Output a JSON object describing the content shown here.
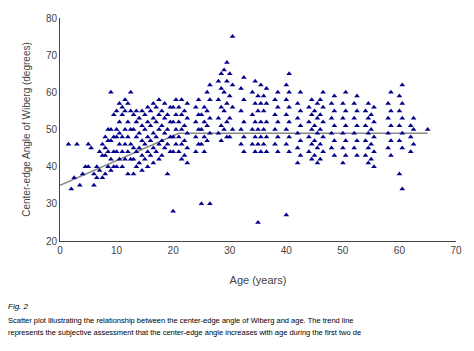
{
  "chart_data": {
    "type": "scatter",
    "xlabel": "Age (years)",
    "ylabel": "Center-edge Angle of Wiberg (degrees)",
    "xlim": [
      0,
      70
    ],
    "ylim": [
      20,
      80
    ],
    "xticks": [
      0,
      10,
      20,
      30,
      40,
      50,
      60,
      70
    ],
    "yticks": [
      20,
      30,
      40,
      50,
      60,
      70,
      80
    ],
    "grid": false,
    "annotations": [
      "Fig. 2",
      "Scatter plot illustrating the relationship between the center-edge angle of Wiberg and age. The trend line",
      "represents the subjective assessment that the center-edge angle increases with age during the first two de"
    ],
    "series": [
      {
        "type": "scatter",
        "marker": "triangle",
        "color": "#00008B",
        "x": [
          1.5,
          2.5,
          2.0,
          3.5,
          3.0,
          4.5,
          4.0,
          5.5,
          5.0,
          5.0,
          6.5,
          6.0,
          6.5,
          6.0,
          7.5,
          7.0,
          7.5,
          7.0,
          7.5,
          8.5,
          8.0,
          8.5,
          8.0,
          8.5,
          8.0,
          8.5,
          8.0,
          9.5,
          9.0,
          9.5,
          9.0,
          9.5,
          9.0,
          9.5,
          9.0,
          9.0,
          10.5,
          10.0,
          10.5,
          10.0,
          10.5,
          10.0,
          10.5,
          10.0,
          10.5,
          10.0,
          11.5,
          11.0,
          11.5,
          11.0,
          11.5,
          11.0,
          11.5,
          11.0,
          11.5,
          11.0,
          12.5,
          12.0,
          12.5,
          12.0,
          12.5,
          12.0,
          12.5,
          12.0,
          12.5,
          12.0,
          13.5,
          13.0,
          13.5,
          13.0,
          13.5,
          13.0,
          13.5,
          13.0,
          13.5,
          13.0,
          14.5,
          14.0,
          14.5,
          14.0,
          14.5,
          14.0,
          14.5,
          14.0,
          14.5,
          15.5,
          15.0,
          15.5,
          15.0,
          15.5,
          15.0,
          15.5,
          15.0,
          15.5,
          16.5,
          16.0,
          16.5,
          16.0,
          16.5,
          16.0,
          16.5,
          16.0,
          16.5,
          17.5,
          17.0,
          17.5,
          17.0,
          17.5,
          17.0,
          17.5,
          17.0,
          17.5,
          18.5,
          18.0,
          18.5,
          18.0,
          18.5,
          18.0,
          18.5,
          18.0,
          19.5,
          19.0,
          19.5,
          19.0,
          19.5,
          19.0,
          19.5,
          19.0,
          20.5,
          20.0,
          20.5,
          20.0,
          20.5,
          20.0,
          20.5,
          20.0,
          20.0,
          21.5,
          21.0,
          21.5,
          21.0,
          21.5,
          21.0,
          21.5,
          21.0,
          21.5,
          22.5,
          22.0,
          22.5,
          22.0,
          22.5,
          22.0,
          22.5,
          22.0,
          22.5,
          24.5,
          24.0,
          24.5,
          24.0,
          24.5,
          24.0,
          24.5,
          24.0,
          25.5,
          25.0,
          25.5,
          25.0,
          25.5,
          25.0,
          25.5,
          25.0,
          26.5,
          26.0,
          26.5,
          26.0,
          26.5,
          26.0,
          26.5,
          26.0,
          26.5,
          28.5,
          28.0,
          28.5,
          28.0,
          28.5,
          28.0,
          28.5,
          28.0,
          28.5,
          29.5,
          29.0,
          29.5,
          29.0,
          29.5,
          29.0,
          29.5,
          29.0,
          29.5,
          30.5,
          30.0,
          30.5,
          30.0,
          30.5,
          30.0,
          30.5,
          30.0,
          32.5,
          32.0,
          32.5,
          32.0,
          32.5,
          32.0,
          32.5,
          32.0,
          32.5,
          34.5,
          34.0,
          34.5,
          34.0,
          34.5,
          34.0,
          34.5,
          34.0,
          34.5,
          35.5,
          35.0,
          35.5,
          35.0,
          35.5,
          35.0,
          35.5,
          35.0,
          35.5,
          35.0,
          36.5,
          36.0,
          36.5,
          36.0,
          36.5,
          36.0,
          36.5,
          36.0,
          36.5,
          38.5,
          38.0,
          38.5,
          38.0,
          38.5,
          38.0,
          38.5,
          38.0,
          38.5,
          40.5,
          40.0,
          40.5,
          40.0,
          40.5,
          40.0,
          40.5,
          40.0,
          40.5,
          40.0,
          40.5,
          40.0,
          42.5,
          42.0,
          42.5,
          42.0,
          42.5,
          42.0,
          42.5,
          42.0,
          42.5,
          42.0,
          44.5,
          44.0,
          44.5,
          44.0,
          44.5,
          44.0,
          44.5,
          44.0,
          44.5,
          45.5,
          45.0,
          45.5,
          45.0,
          45.5,
          45.0,
          45.5,
          45.0,
          45.5,
          46.5,
          46.0,
          46.5,
          46.0,
          46.5,
          46.0,
          46.5,
          46.0,
          46.5,
          46.0,
          48.5,
          48.0,
          48.5,
          48.0,
          48.5,
          48.0,
          48.5,
          48.0,
          48.5,
          50.5,
          50.0,
          50.5,
          50.0,
          50.5,
          50.0,
          50.5,
          50.0,
          50.5,
          50.0,
          52.5,
          52.0,
          52.5,
          52.0,
          52.5,
          52.0,
          52.5,
          52.0,
          52.5,
          54.5,
          54.0,
          54.5,
          54.0,
          54.5,
          54.0,
          54.5,
          54.0,
          54.5,
          55.5,
          55.0,
          55.5,
          55.0,
          55.5,
          55.0,
          55.5,
          55.0,
          55.5,
          58.5,
          58.0,
          58.5,
          58.0,
          58.5,
          58.0,
          58.5,
          58.0,
          58.5,
          60.5,
          60.0,
          60.5,
          60.0,
          60.5,
          60.0,
          60.5,
          60.0,
          60.5,
          60.0,
          60.5,
          62.5,
          62.0,
          62.5,
          62.0,
          62.5,
          62.0,
          65.0
        ],
        "values": [
          46,
          37,
          34,
          35,
          46,
          40,
          38,
          45,
          46,
          40,
          40,
          38,
          37,
          35,
          46,
          44,
          43,
          39,
          37,
          50,
          48,
          47,
          45,
          44,
          43,
          40,
          38,
          54,
          50,
          48,
          47,
          44,
          42,
          40,
          39,
          60,
          57,
          55,
          52,
          50,
          49,
          48,
          46,
          44,
          42,
          40,
          58,
          56,
          55,
          54,
          50,
          48,
          46,
          44,
          42,
          40,
          60,
          57,
          55,
          52,
          50,
          48,
          46,
          44,
          42,
          38,
          55,
          54,
          52,
          50,
          48,
          45,
          44,
          42,
          40,
          38,
          55,
          53,
          51,
          49,
          47,
          45,
          43,
          41,
          39,
          56,
          54,
          52,
          50,
          48,
          46,
          44,
          42,
          40,
          57,
          55,
          53,
          51,
          49,
          47,
          45,
          43,
          41,
          58,
          56,
          54,
          52,
          50,
          48,
          46,
          44,
          42,
          57,
          55,
          53,
          51,
          49,
          47,
          45,
          43,
          56,
          54,
          52,
          50,
          48,
          46,
          44,
          38,
          58,
          56,
          54,
          52,
          50,
          48,
          46,
          44,
          28,
          58,
          56,
          54,
          52,
          50,
          48,
          46,
          44,
          42,
          57,
          55,
          53,
          51,
          49,
          47,
          45,
          43,
          41,
          58,
          56,
          54,
          52,
          50,
          48,
          46,
          44,
          56,
          54,
          52,
          50,
          48,
          46,
          44,
          30,
          62,
          60,
          58,
          55,
          53,
          51,
          49,
          47,
          30,
          65,
          63,
          61,
          58,
          56,
          53,
          51,
          49,
          47,
          68,
          66,
          63,
          60,
          57,
          55,
          52,
          50,
          48,
          75,
          65,
          62,
          59,
          56,
          53,
          50,
          48,
          64,
          61,
          58,
          55,
          52,
          50,
          48,
          46,
          44,
          63,
          60,
          57,
          54,
          52,
          50,
          48,
          46,
          44,
          62,
          59,
          57,
          55,
          52,
          50,
          48,
          46,
          44,
          25,
          61,
          59,
          57,
          55,
          52,
          50,
          48,
          46,
          44,
          60,
          58,
          56,
          54,
          52,
          50,
          48,
          46,
          44,
          65,
          62,
          60,
          58,
          56,
          54,
          52,
          50,
          48,
          46,
          44,
          27,
          60,
          57,
          55,
          53,
          51,
          49,
          47,
          45,
          43,
          41,
          58,
          56,
          54,
          52,
          50,
          48,
          46,
          44,
          42,
          57,
          55,
          53,
          51,
          49,
          47,
          45,
          43,
          41,
          60,
          58,
          56,
          54,
          52,
          50,
          48,
          46,
          44,
          42,
          59,
          57,
          55,
          53,
          51,
          49,
          47,
          45,
          43,
          60,
          57,
          55,
          53,
          51,
          49,
          47,
          45,
          43,
          41,
          59,
          57,
          55,
          53,
          51,
          49,
          47,
          45,
          43,
          57,
          55,
          53,
          51,
          49,
          47,
          45,
          43,
          41,
          56,
          54,
          52,
          50,
          48,
          46,
          44,
          42,
          40,
          60,
          57,
          55,
          53,
          51,
          49,
          47,
          45,
          43,
          62,
          59,
          57,
          55,
          53,
          51,
          49,
          47,
          45,
          38,
          34,
          53,
          51,
          50,
          48,
          46,
          44,
          50
        ]
      },
      {
        "type": "line",
        "line_style": "solid",
        "color": "#888888",
        "x": [
          0,
          21,
          65
        ],
        "values": [
          35,
          49,
          49
        ]
      }
    ]
  }
}
